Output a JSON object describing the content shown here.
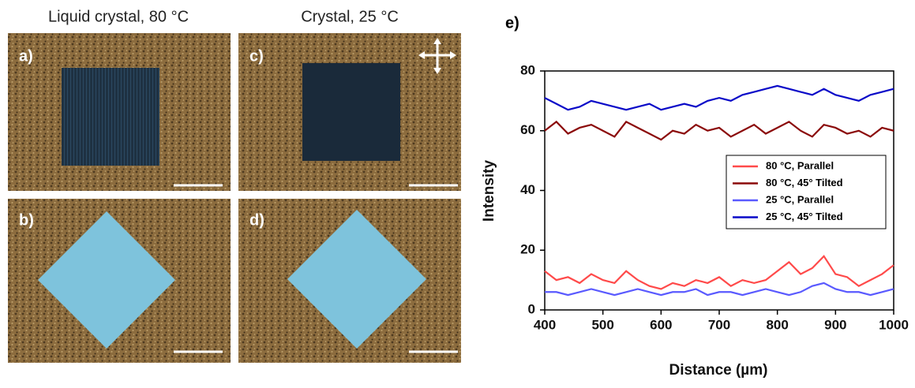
{
  "columns": [
    "Liquid crystal, 80 °C",
    "Crystal, 25 °C"
  ],
  "panels": [
    "a)",
    "b)",
    "c)",
    "d)"
  ],
  "chart_label": "e)",
  "chart_data": {
    "type": "line",
    "xlabel": "Distance (µm)",
    "ylabel": "Intensity",
    "x": [
      400,
      420,
      440,
      460,
      480,
      500,
      520,
      540,
      560,
      580,
      600,
      620,
      640,
      660,
      680,
      700,
      720,
      740,
      760,
      780,
      800,
      820,
      840,
      860,
      880,
      900,
      920,
      940,
      960,
      980,
      1000
    ],
    "series": [
      {
        "name": "80 °C, Parallel",
        "color": "#ff4a4a",
        "values": [
          13,
          10,
          11,
          9,
          12,
          10,
          9,
          13,
          10,
          8,
          7,
          9,
          8,
          10,
          9,
          11,
          8,
          10,
          9,
          10,
          13,
          16,
          12,
          14,
          18,
          12,
          11,
          8,
          10,
          12,
          15
        ]
      },
      {
        "name": "80 °C,  45°  Tilted",
        "color": "#8b0a0a",
        "values": [
          60,
          63,
          59,
          61,
          62,
          60,
          58,
          63,
          61,
          59,
          57,
          60,
          59,
          62,
          60,
          61,
          58,
          60,
          62,
          59,
          61,
          63,
          60,
          58,
          62,
          61,
          59,
          60,
          58,
          61,
          60
        ]
      },
      {
        "name": "25 °C, Parallel",
        "color": "#5a5aff",
        "values": [
          6,
          6,
          5,
          6,
          7,
          6,
          5,
          6,
          7,
          6,
          5,
          6,
          6,
          7,
          5,
          6,
          6,
          5,
          6,
          7,
          6,
          5,
          6,
          8,
          9,
          7,
          6,
          6,
          5,
          6,
          7
        ]
      },
      {
        "name": "25 °C, 45° Tilted",
        "color": "#0a0ac8",
        "values": [
          71,
          69,
          67,
          68,
          70,
          69,
          68,
          67,
          68,
          69,
          67,
          68,
          69,
          68,
          70,
          71,
          70,
          72,
          73,
          74,
          75,
          74,
          73,
          72,
          74,
          72,
          71,
          70,
          72,
          73,
          74
        ]
      }
    ],
    "xlim": [
      400,
      1000
    ],
    "ylim": [
      0,
      80
    ],
    "xticks": [
      400,
      500,
      600,
      700,
      800,
      900,
      1000
    ],
    "yticks": [
      0,
      20,
      40,
      60,
      80
    ],
    "legend": "right"
  }
}
